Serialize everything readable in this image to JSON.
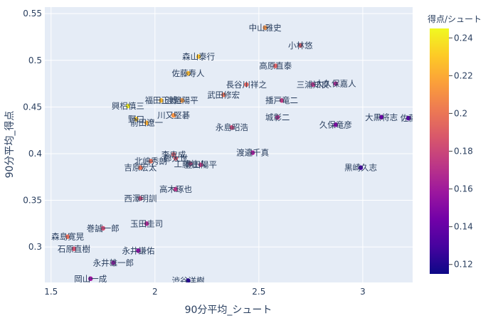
{
  "chart_data": {
    "type": "scatter",
    "title": "",
    "xlabel": "90分平均_シュート",
    "ylabel": "90分平均_得点",
    "xlim": [
      1.47,
      3.24
    ],
    "ylim": [
      0.262,
      0.557
    ],
    "x_ticks": [
      1.5,
      2,
      2.5,
      3
    ],
    "x_tick_labels": [
      "1.5",
      "2",
      "2.5",
      "3"
    ],
    "y_ticks": [
      0.3,
      0.35,
      0.4,
      0.45,
      0.5,
      0.55
    ],
    "y_tick_labels": [
      "0.3",
      "0.35",
      "0.4",
      "0.45",
      "0.5",
      "0.55"
    ],
    "grid": true,
    "plot_background": "#E5ECF6",
    "colorbar": {
      "title": "得点/シュート",
      "range": [
        0.115,
        0.245
      ],
      "ticks": [
        0.12,
        0.14,
        0.16,
        0.18,
        0.2,
        0.22,
        0.24
      ],
      "tick_labels": [
        "0.12",
        "0.14",
        "0.16",
        "0.18",
        "0.2",
        "0.22",
        "0.24"
      ],
      "colorscale": [
        "#0d0887",
        "#46039f",
        "#7201a8",
        "#9c179e",
        "#bd3786",
        "#d8576b",
        "#ed7953",
        "#fb9f3a",
        "#fdca26",
        "#f0f921"
      ]
    },
    "points": [
      {
        "name": "中山雅史",
        "x": 2.53,
        "y": 0.535,
        "c": 0.211
      },
      {
        "name": "小林悠",
        "x": 2.7,
        "y": 0.516,
        "c": 0.191
      },
      {
        "name": "森山泰行",
        "x": 2.21,
        "y": 0.504,
        "c": 0.228
      },
      {
        "name": "高原直泰",
        "x": 2.58,
        "y": 0.494,
        "c": 0.192
      },
      {
        "name": "佐藤寿人",
        "x": 2.16,
        "y": 0.486,
        "c": 0.225
      },
      {
        "name": "三浦知良",
        "x": 2.76,
        "y": 0.474,
        "c": 0.172
      },
      {
        "name": "大久保嘉人",
        "x": 2.87,
        "y": 0.475,
        "c": 0.166
      },
      {
        "name": "長谷川祥之",
        "x": 2.44,
        "y": 0.474,
        "c": 0.194
      },
      {
        "name": "武田修宏",
        "x": 2.33,
        "y": 0.463,
        "c": 0.199
      },
      {
        "name": "福田正博",
        "x": 2.03,
        "y": 0.457,
        "c": 0.225
      },
      {
        "name": "興梠慎三",
        "x": 1.87,
        "y": 0.451,
        "c": 0.241
      },
      {
        "name": "播戸竜二",
        "x": 2.61,
        "y": 0.457,
        "c": 0.175
      },
      {
        "name": "渡邉陽平",
        "x": 2.13,
        "y": 0.457,
        "c": 0.214
      },
      {
        "name": "川又堅碁",
        "x": 2.09,
        "y": 0.441,
        "c": 0.211
      },
      {
        "name": "城彰二",
        "x": 2.59,
        "y": 0.439,
        "c": 0.17
      },
      {
        "name": "大黒将志",
        "x": 3.09,
        "y": 0.439,
        "c": 0.142
      },
      {
        "name": "佐藤",
        "x": 3.22,
        "y": 0.438,
        "c": 0.136
      },
      {
        "name": "野口",
        "x": 1.91,
        "y": 0.437,
        "c": 0.229
      },
      {
        "name": "前田遼一",
        "x": 1.96,
        "y": 0.433,
        "c": 0.221
      },
      {
        "name": "久保竜彦",
        "x": 2.87,
        "y": 0.431,
        "c": 0.15
      },
      {
        "name": "永島昭浩",
        "x": 2.37,
        "y": 0.428,
        "c": 0.181
      },
      {
        "name": "渡邉千真",
        "x": 2.47,
        "y": 0.401,
        "c": 0.162
      },
      {
        "name": "李忠成",
        "x": 2.09,
        "y": 0.399,
        "c": 0.19
      },
      {
        "name": "鄭大世",
        "x": 2.1,
        "y": 0.395,
        "c": 0.188
      },
      {
        "name": "北嶋秀朗",
        "x": 1.98,
        "y": 0.392,
        "c": 0.198
      },
      {
        "name": "黒崎久志",
        "x": 2.99,
        "y": 0.385,
        "c": 0.129
      },
      {
        "name": "工藤壮人",
        "x": 2.17,
        "y": 0.389,
        "c": 0.179
      },
      {
        "name": "豊田陽平",
        "x": 2.22,
        "y": 0.388,
        "c": 0.175
      },
      {
        "name": "吉原宏太",
        "x": 1.93,
        "y": 0.385,
        "c": 0.199
      },
      {
        "name": "高木琢也",
        "x": 2.1,
        "y": 0.362,
        "c": 0.172
      },
      {
        "name": "西澤明訓",
        "x": 1.93,
        "y": 0.352,
        "c": 0.182
      },
      {
        "name": "玉田圭司",
        "x": 1.96,
        "y": 0.325,
        "c": 0.166
      },
      {
        "name": "巻誠一郎",
        "x": 1.75,
        "y": 0.32,
        "c": 0.183
      },
      {
        "name": "森島寛晃",
        "x": 1.58,
        "y": 0.311,
        "c": 0.197
      },
      {
        "name": "石原直樹",
        "x": 1.61,
        "y": 0.298,
        "c": 0.185
      },
      {
        "name": "永井謙佑",
        "x": 1.92,
        "y": 0.296,
        "c": 0.154
      },
      {
        "name": "永井雄一郎",
        "x": 1.8,
        "y": 0.283,
        "c": 0.157
      },
      {
        "name": "岡山一成",
        "x": 1.69,
        "y": 0.266,
        "c": 0.157
      },
      {
        "name": "渋谷洋樹",
        "x": 2.16,
        "y": 0.264,
        "c": 0.122
      }
    ]
  }
}
